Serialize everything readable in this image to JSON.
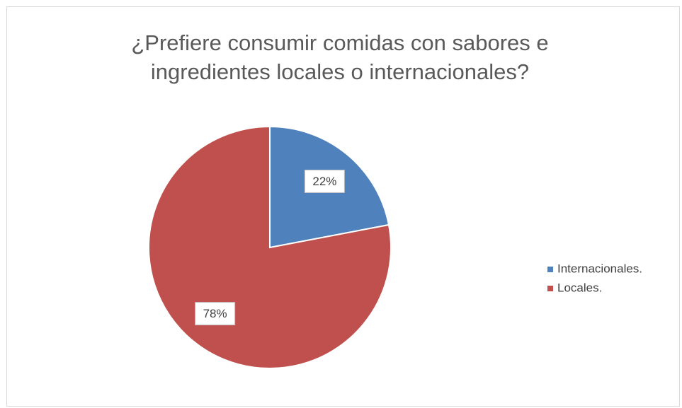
{
  "chart_data": {
    "type": "pie",
    "title": [
      "¿Prefiere consumir comidas con sabores e",
      "ingredientes  locales o internacionales?"
    ],
    "categories": [
      "Internacionales.",
      "Locales."
    ],
    "values": [
      22,
      78
    ],
    "value_labels": [
      "22%",
      "78%"
    ],
    "colors": [
      "#4f81bd",
      "#c0504d"
    ],
    "legend": "right"
  }
}
